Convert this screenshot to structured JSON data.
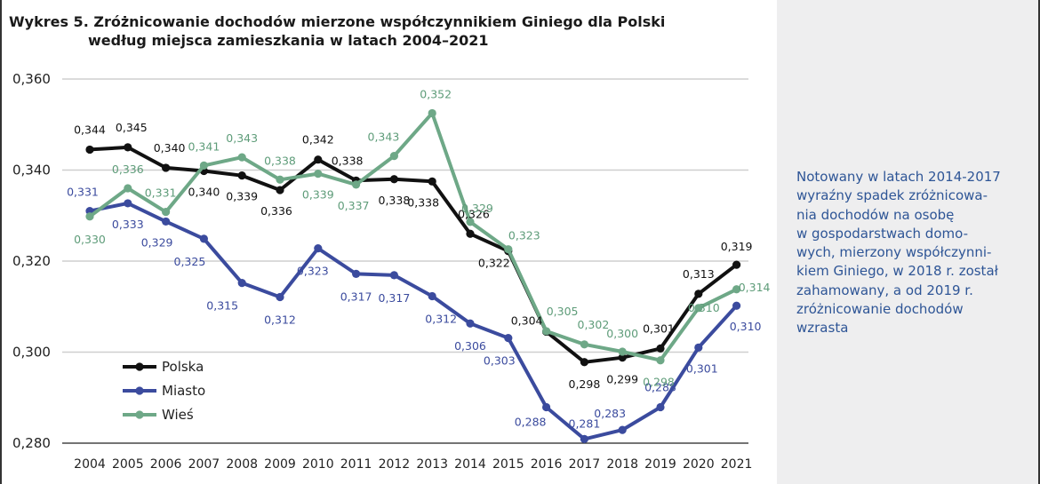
{
  "chart_data": {
    "type": "line",
    "title_line1": "Wykres 5. Zróżnicowanie dochodów mierzone współczynnikiem Giniego dla Polski",
    "title_line2": "według miejsca zamieszkania w latach 2004–2021",
    "xlabel": "",
    "ylabel": "",
    "x": [
      "2004",
      "2005",
      "2006",
      "2007",
      "2008",
      "2009",
      "2010",
      "2011",
      "2012",
      "2013",
      "2014",
      "2015",
      "2016",
      "2017",
      "2018",
      "2019",
      "2020",
      "2021"
    ],
    "ylim": [
      0.28,
      0.36
    ],
    "yticks": [
      {
        "value": 0.28,
        "label": "0,280"
      },
      {
        "value": 0.3,
        "label": "0,300"
      },
      {
        "value": 0.32,
        "label": "0,320"
      },
      {
        "value": 0.34,
        "label": "0,340"
      },
      {
        "value": 0.36,
        "label": "0,360"
      }
    ],
    "grid": "horizontal",
    "legend_position": "bottom-left",
    "series": [
      {
        "name": "Polska",
        "color": "#111111",
        "label_color": "#111111",
        "values": [
          0.3445,
          0.345,
          0.3405,
          0.3398,
          0.3388,
          0.3356,
          0.3423,
          0.3377,
          0.338,
          0.3375,
          0.326,
          0.3222,
          0.3045,
          0.2978,
          0.2988,
          0.3008,
          0.3128,
          0.3192
        ],
        "labels": [
          "0,344",
          "0,345",
          "0,340",
          "0,340",
          "0,339",
          "0,336",
          "0,342",
          "0,338",
          "0,338",
          "0,338",
          "0,326",
          "0,322",
          "0,304",
          "0,298",
          "0,299",
          "0,301",
          "0,313",
          "0,319"
        ]
      },
      {
        "name": "Miasto",
        "color": "#3b4b9e",
        "label_color": "#3b4b9e",
        "values": [
          0.331,
          0.3327,
          0.3287,
          0.3249,
          0.3152,
          0.3121,
          0.3228,
          0.3172,
          0.3169,
          0.3123,
          0.3063,
          0.3031,
          0.2879,
          0.2809,
          0.2829,
          0.2879,
          0.301,
          0.3102
        ],
        "labels": [
          "0,331",
          "0,333",
          "0,329",
          "0,325",
          "0,315",
          "0,312",
          "0,323",
          "0,317",
          "0,317",
          "0,312",
          "0,306",
          "0,303",
          "0,288",
          "0,281",
          "0,283",
          "0,288",
          "0,301",
          "0,310"
        ]
      },
      {
        "name": "Wieś",
        "color": "#6ea887",
        "label_color": "#5e9c79",
        "values": [
          0.3298,
          0.336,
          0.3308,
          0.341,
          0.3428,
          0.3379,
          0.3392,
          0.3368,
          0.3431,
          0.3525,
          0.3286,
          0.3226,
          0.3046,
          0.3017,
          0.3001,
          0.2982,
          0.3097,
          0.3138
        ],
        "labels": [
          "0,330",
          "0,336",
          "0,331",
          "0,341",
          "0,343",
          "0,338",
          "0,339",
          "0,337",
          "0,343",
          "0,352",
          "0,329",
          "0,323",
          "0,305",
          "0,302",
          "0,300",
          "0,298",
          "0,310",
          "0,314"
        ]
      }
    ]
  },
  "side_note": {
    "text": "Notowany w latach 2014-2017\nwyraźny spadek zróżnicowa-\nnia dochodów na osobę\nw gospodarstwach domo-\nwych, mierzony współczynni-\nkiem Giniego, w 2018 r. został\nzahamowany, a od 2019 r.\nzróżnicowanie dochodów\nwzrasta"
  }
}
